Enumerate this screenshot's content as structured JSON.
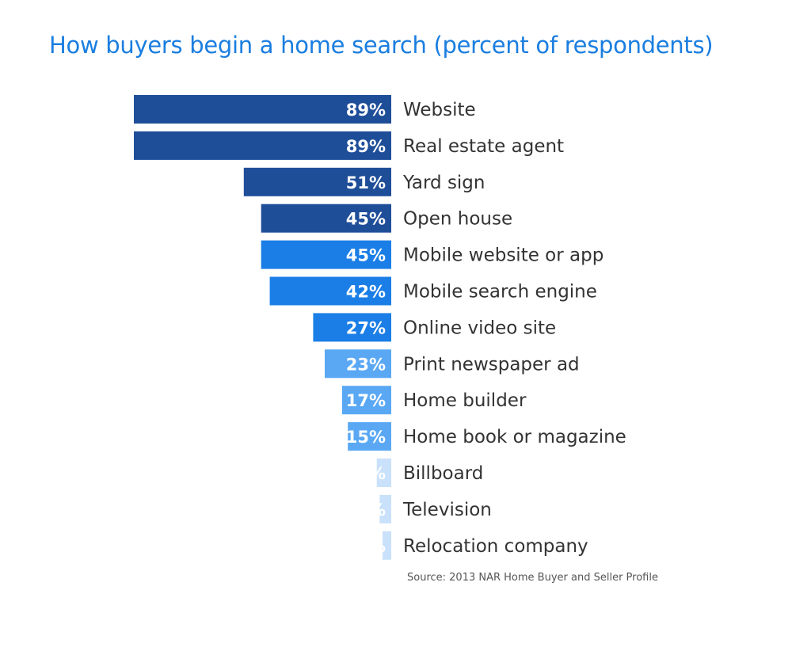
{
  "chart_data": {
    "type": "bar",
    "orientation": "horizontal",
    "title": "How buyers begin a home search (percent of respondents)",
    "categories": [
      "Website",
      "Real estate agent",
      "Yard sign",
      "Open house",
      "Mobile website or app",
      "Mobile search engine",
      "Online video site",
      "Print newspaper ad",
      "Home builder",
      "Home book or magazine",
      "Billboard",
      "Television",
      "Relocation company"
    ],
    "values": [
      89,
      89,
      51,
      45,
      45,
      42,
      27,
      23,
      17,
      15,
      5,
      4,
      3
    ],
    "value_labels": [
      "89%",
      "89%",
      "51%",
      "45%",
      "45%",
      "42%",
      "27%",
      "23%",
      "17%",
      "15%",
      "5%",
      "4%",
      "3%"
    ],
    "bar_colors": [
      "#1f4e99",
      "#1f4e99",
      "#1f4e99",
      "#1f4e99",
      "#1a7ee6",
      "#1a7ee6",
      "#1a7ee6",
      "#5aa8f4",
      "#5aa8f4",
      "#5aa8f4",
      "#c9e1fa",
      "#c9e1fa",
      "#c9e1fa"
    ],
    "xlim": [
      0,
      89
    ],
    "grid": false,
    "legend": "none",
    "source": "Source: 2013 NAR Home Buyer and Seller Profile"
  }
}
